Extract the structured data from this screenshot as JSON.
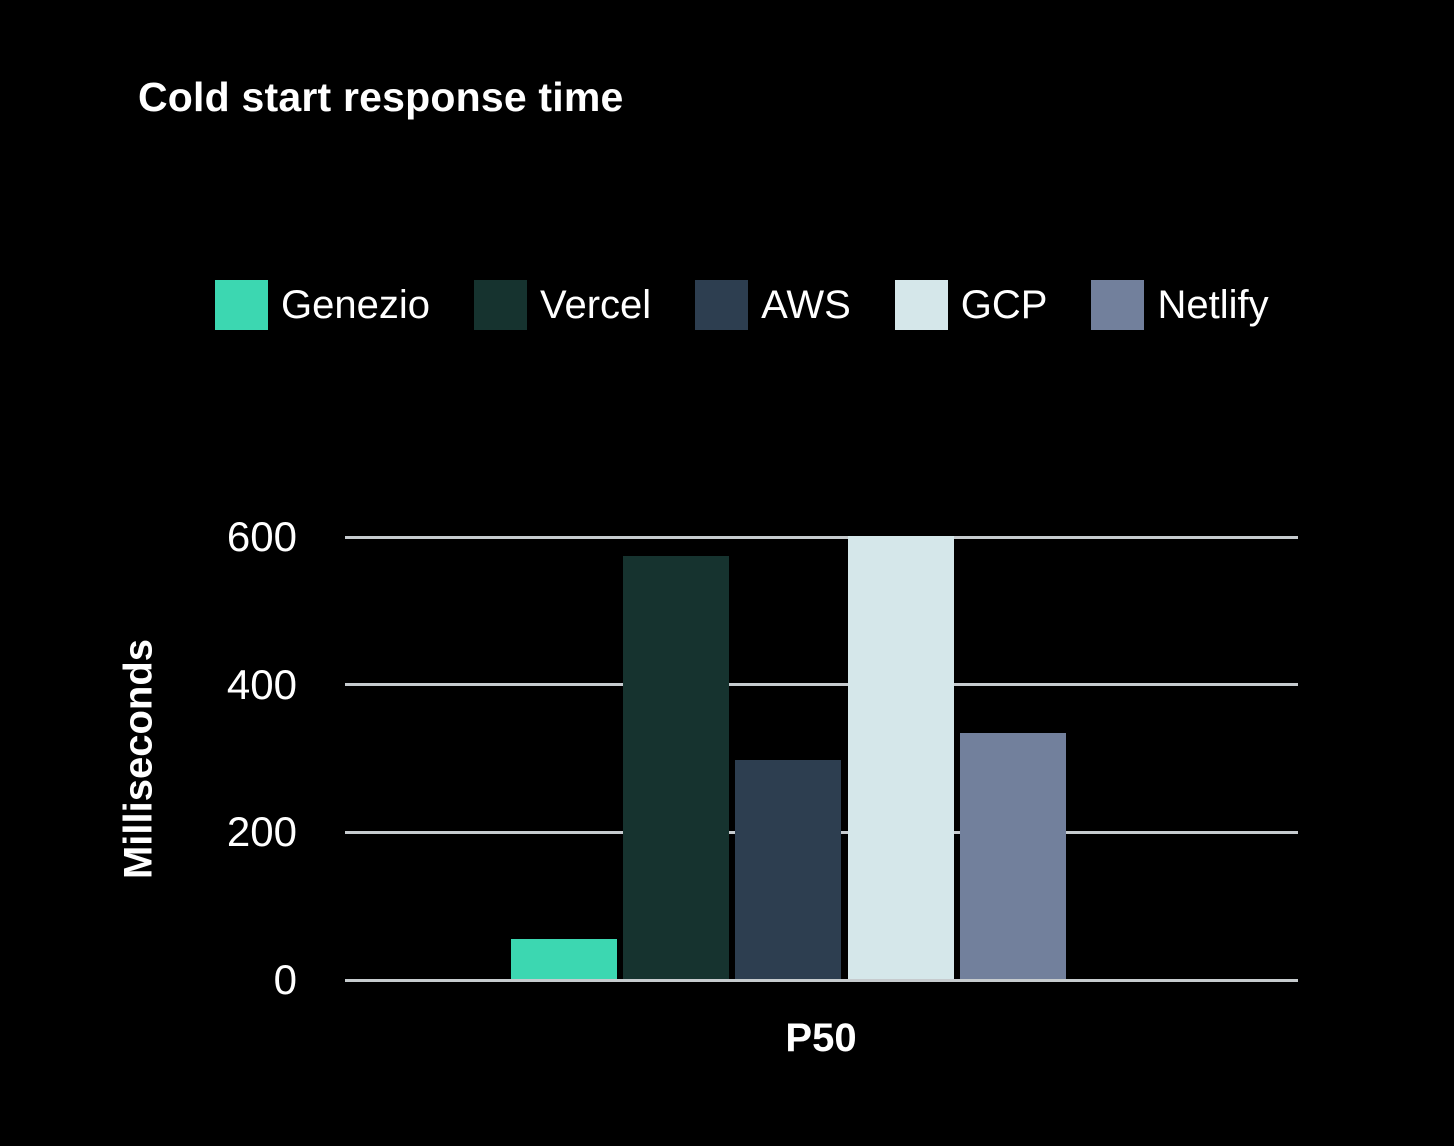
{
  "title": "Cold start response time",
  "chart_data": {
    "type": "bar",
    "categories": [
      "P50"
    ],
    "series": [
      {
        "name": "Genezio",
        "color": "#3cd7b1",
        "values": [
          54
        ]
      },
      {
        "name": "Vercel",
        "color": "#16332f",
        "values": [
          572
        ]
      },
      {
        "name": "AWS",
        "color": "#2d3e50",
        "values": [
          296
        ]
      },
      {
        "name": "GCP",
        "color": "#d5e7ea",
        "values": [
          600
        ]
      },
      {
        "name": "Netlify",
        "color": "#72809c",
        "values": [
          333
        ]
      }
    ],
    "xlabel": "",
    "ylabel": "Milliseconds",
    "yticks": [
      0,
      200,
      400,
      600
    ],
    "ylim": [
      0,
      600
    ],
    "grid": true,
    "legend_position": "top",
    "background_color": "#000000",
    "text_color": "#ffffff",
    "gridline_color": "#c6cbce"
  }
}
